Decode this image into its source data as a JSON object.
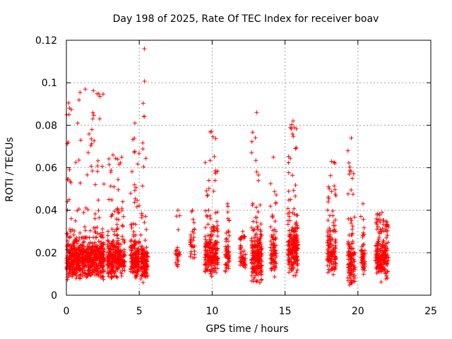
{
  "chart_data": {
    "type": "scatter",
    "title": "Day 198 of 2025, Rate Of TEC Index for receiver boav",
    "xlabel": "GPS time / hours",
    "ylabel": "ROTI / TECUs",
    "xlim": [
      0,
      25
    ],
    "ylim": [
      0,
      0.12
    ],
    "xticks": [
      0,
      5,
      10,
      15,
      20,
      25
    ],
    "yticks": [
      0,
      0.02,
      0.04,
      0.06,
      0.08,
      0.1,
      0.12
    ],
    "xtick_labels": [
      "0",
      "5",
      "10",
      "15",
      "20",
      "25"
    ],
    "ytick_labels": [
      "0",
      "0.02",
      "0.04",
      "0.06",
      "0.08",
      "0.1",
      "0.12"
    ],
    "grid": true,
    "marker": "+",
    "color": "#ff0000",
    "clusters": [
      {
        "x": [
          0,
          2.6
        ],
        "y_core": [
          0.007,
          0.027
        ],
        "y_max": 0.097,
        "n": 700
      },
      {
        "x": [
          2.8,
          3.6
        ],
        "y_core": [
          0.007,
          0.028
        ],
        "y_max": 0.066,
        "n": 220
      },
      {
        "x": [
          3.6,
          4.0
        ],
        "y_core": [
          0.008,
          0.025
        ],
        "y_max": 0.065,
        "n": 80
      },
      {
        "x": [
          4.4,
          5.0
        ],
        "y_core": [
          0.007,
          0.027
        ],
        "y_max": 0.081,
        "n": 160
      },
      {
        "x": [
          5.1,
          5.6
        ],
        "y_core": [
          0.005,
          0.025
        ],
        "y_max": 0.116,
        "n": 140
      },
      {
        "x": [
          7.5,
          7.8
        ],
        "y_core": [
          0.012,
          0.024
        ],
        "y_max": 0.04,
        "n": 25
      },
      {
        "x": [
          8.5,
          8.8
        ],
        "y_core": [
          0.015,
          0.03
        ],
        "y_max": 0.04,
        "n": 30
      },
      {
        "x": [
          9.5,
          10.4
        ],
        "y_core": [
          0.008,
          0.03
        ],
        "y_max": 0.077,
        "n": 220
      },
      {
        "x": [
          10.9,
          11.2
        ],
        "y_core": [
          0.01,
          0.028
        ],
        "y_max": 0.043,
        "n": 60
      },
      {
        "x": [
          11.9,
          12.3
        ],
        "y_core": [
          0.01,
          0.026
        ],
        "y_max": 0.03,
        "n": 50
      },
      {
        "x": [
          12.7,
          13.4
        ],
        "y_core": [
          0.005,
          0.03
        ],
        "y_max": 0.086,
        "n": 200
      },
      {
        "x": [
          14.0,
          14.4
        ],
        "y_core": [
          0.008,
          0.03
        ],
        "y_max": 0.065,
        "n": 80
      },
      {
        "x": [
          15.2,
          15.9
        ],
        "y_core": [
          0.008,
          0.035
        ],
        "y_max": 0.082,
        "n": 220
      },
      {
        "x": [
          17.9,
          18.5
        ],
        "y_core": [
          0.008,
          0.03
        ],
        "y_max": 0.063,
        "n": 130
      },
      {
        "x": [
          19.3,
          19.8
        ],
        "y_core": [
          0.004,
          0.028
        ],
        "y_max": 0.074,
        "n": 120
      },
      {
        "x": [
          20.2,
          20.5
        ],
        "y_core": [
          0.008,
          0.028
        ],
        "y_max": 0.043,
        "n": 50
      },
      {
        "x": [
          21.2,
          22.1
        ],
        "y_core": [
          0.005,
          0.03
        ],
        "y_max": 0.039,
        "n": 200
      }
    ]
  }
}
